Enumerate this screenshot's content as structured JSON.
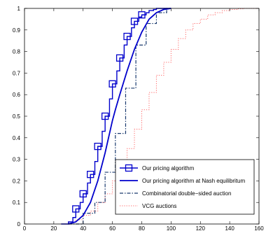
{
  "chart_data": {
    "type": "line",
    "title": "",
    "xlabel": "",
    "ylabel": "",
    "xlim": [
      0,
      160
    ],
    "ylim": [
      0,
      1
    ],
    "xticks": [
      0,
      20,
      40,
      60,
      80,
      100,
      120,
      140,
      160
    ],
    "yticks": [
      0,
      0.1,
      0.2,
      0.3,
      0.4,
      0.5,
      0.6,
      0.7,
      0.8,
      0.9,
      1
    ],
    "xtick_labels": [
      "0",
      "20",
      "40",
      "60",
      "80",
      "100",
      "120",
      "140",
      "160"
    ],
    "ytick_labels": [
      "0",
      "0.1",
      "0.2",
      "0.3",
      "0.4",
      "0.5",
      "0.6",
      "0.7",
      "0.8",
      "0.9",
      "1"
    ],
    "grid": false,
    "legend_position": "lower-right",
    "series": [
      {
        "name": "Our pricing algorithm",
        "style": "stairs-with-square-markers",
        "color": "#0000cc",
        "x": [
          25,
          30,
          33,
          35,
          38,
          40,
          43,
          45,
          48,
          50,
          53,
          55,
          58,
          60,
          63,
          65,
          68,
          70,
          73,
          75,
          78,
          80,
          83,
          85,
          88,
          90,
          93,
          95,
          100
        ],
        "y": [
          0,
          0.01,
          0.03,
          0.07,
          0.1,
          0.14,
          0.19,
          0.23,
          0.29,
          0.36,
          0.43,
          0.5,
          0.58,
          0.65,
          0.71,
          0.77,
          0.83,
          0.87,
          0.91,
          0.94,
          0.96,
          0.97,
          0.98,
          0.99,
          0.995,
          1.0,
          1.0,
          1.0,
          1.0
        ],
        "markers_x": [
          35,
          40,
          45,
          50,
          55,
          60,
          65,
          70,
          75,
          80
        ],
        "markers_y": [
          0.07,
          0.14,
          0.23,
          0.36,
          0.5,
          0.65,
          0.77,
          0.87,
          0.94,
          0.97
        ]
      },
      {
        "name": "Our pricing algorithm at Nash equilibritum",
        "style": "solid-smooth",
        "color": "#0000cc",
        "x": [
          30,
          35,
          40,
          45,
          50,
          55,
          60,
          62,
          65,
          70,
          75,
          80,
          85,
          90,
          95,
          100
        ],
        "y": [
          0.0,
          0.01,
          0.04,
          0.1,
          0.2,
          0.33,
          0.48,
          0.53,
          0.6,
          0.71,
          0.81,
          0.89,
          0.95,
          0.98,
          0.995,
          1.0
        ]
      },
      {
        "name": "Combinatorial double−sided auction",
        "style": "stairs-dashdot",
        "color": "#1a3a6e",
        "x": [
          30,
          40,
          48,
          55,
          62,
          69,
          76,
          83,
          90,
          97,
          100
        ],
        "y": [
          0.0,
          0.05,
          0.1,
          0.24,
          0.42,
          0.63,
          0.83,
          0.93,
          0.98,
          1.0,
          1.0
        ]
      },
      {
        "name": "VCG auctions",
        "style": "stairs-dotted",
        "color": "#ff6666",
        "x": [
          25,
          30,
          35,
          40,
          45,
          50,
          55,
          60,
          65,
          70,
          75,
          80,
          85,
          90,
          95,
          100,
          105,
          110,
          115,
          120,
          125,
          130,
          135,
          140,
          145,
          150,
          155,
          160
        ],
        "y": [
          0,
          0.01,
          0.02,
          0.04,
          0.06,
          0.1,
          0.14,
          0.2,
          0.27,
          0.35,
          0.44,
          0.53,
          0.61,
          0.69,
          0.75,
          0.81,
          0.86,
          0.9,
          0.93,
          0.95,
          0.97,
          0.98,
          0.99,
          0.995,
          0.998,
          1.0,
          1.0,
          1.0
        ]
      }
    ]
  }
}
